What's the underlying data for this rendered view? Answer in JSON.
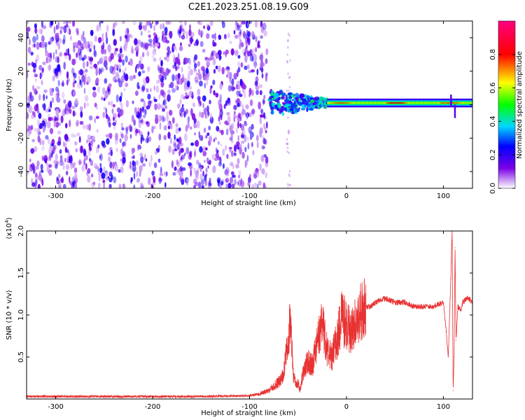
{
  "title": "C2E1.2023.251.08.19.G09",
  "chart_data": [
    {
      "type": "heatmap",
      "xlabel": "Height of straight line (km)",
      "ylabel": "Frequency (Hz)",
      "xlim": [
        -330,
        130
      ],
      "ylim": [
        -50,
        50
      ],
      "xticks": [
        -300,
        -200,
        -100,
        0,
        100
      ],
      "yticks": [
        -40,
        -20,
        0,
        20,
        40
      ],
      "colorbar": {
        "label": "Normalized spectral amplitude",
        "range": [
          0.0,
          1.0
        ],
        "ticks": [
          0.0,
          0.2,
          0.4,
          0.6,
          0.8
        ],
        "colors": [
          "#ffffff",
          "#7b00e6",
          "#0000ff",
          "#00d8ff",
          "#00ff00",
          "#ffff00",
          "#ff0000",
          "#ff0080"
        ]
      },
      "regions": [
        {
          "x": [
            -330,
            -82
          ],
          "freq": [
            -50,
            50
          ],
          "amplitude": "0.0-0.25 (noise)"
        },
        {
          "x": [
            -80,
            -20
          ],
          "freq": [
            -8,
            8
          ],
          "amplitude": "0.2-0.5"
        },
        {
          "x": [
            -20,
            130
          ],
          "freq": [
            -2,
            3
          ],
          "amplitude": "0.4-0.9"
        }
      ],
      "signal_freq_hz": 1
    },
    {
      "type": "line",
      "xlabel": "Height of straight line (km)",
      "ylabel": "SNR (10 * v/v)",
      "y_multiplier": "(x10^4)",
      "xlim": [
        -330,
        130
      ],
      "ylim": [
        0,
        20000
      ],
      "xticks": [
        -300,
        -200,
        -100,
        0,
        100
      ],
      "yticks": [
        5000,
        10000,
        15000,
        20000
      ],
      "ytick_labels": [
        "0.5",
        "1.0",
        "1.5",
        "2.0"
      ],
      "series": [
        {
          "color": "#e83232",
          "x": [
            -330,
            -300,
            -250,
            -200,
            -150,
            -100,
            -90,
            -80,
            -70,
            -65,
            -60,
            -58,
            -55,
            -52,
            -50,
            -48,
            -45,
            -40,
            -35,
            -30,
            -25,
            -20,
            -15,
            -10,
            -5,
            0,
            5,
            10,
            15,
            20,
            25,
            30,
            40,
            50,
            60,
            70,
            80,
            90,
            100,
            103,
            105,
            107,
            109,
            110,
            111,
            112,
            113,
            115,
            118,
            120,
            125,
            130
          ],
          "y": [
            300,
            300,
            300,
            300,
            300,
            400,
            600,
            1000,
            2000,
            3000,
            7000,
            10000,
            3000,
            1500,
            2000,
            1000,
            3000,
            4500,
            4000,
            7000,
            9000,
            6000,
            5000,
            7000,
            9500,
            9000,
            8000,
            9500,
            10500,
            11000,
            11000,
            11500,
            12000,
            11500,
            11500,
            11000,
            11000,
            11000,
            11500,
            8000,
            5000,
            12000,
            20000,
            1000,
            5000,
            18000,
            7000,
            11000,
            10500,
            11500,
            12000,
            11500
          ]
        }
      ]
    }
  ]
}
